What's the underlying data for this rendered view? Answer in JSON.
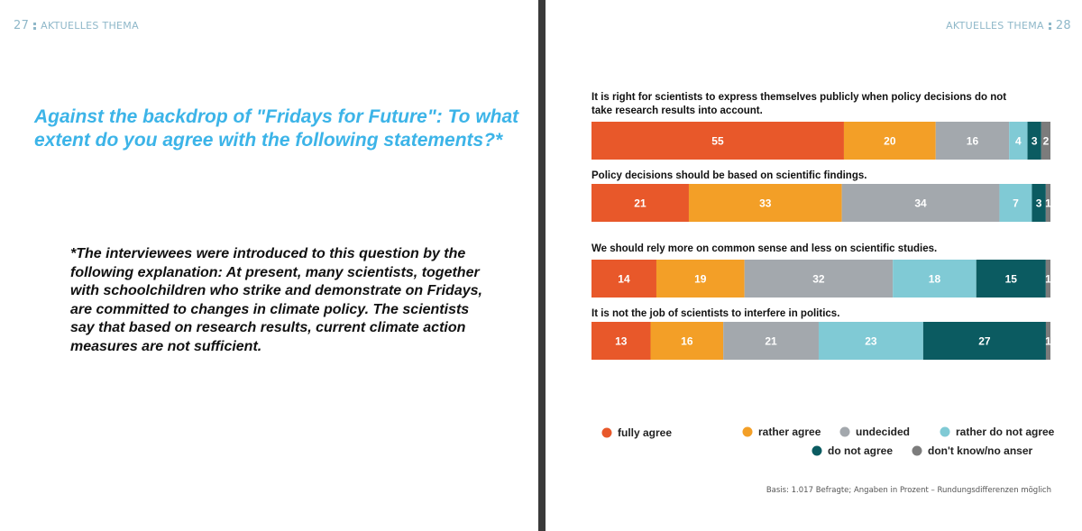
{
  "left_page": {
    "page_number": "27",
    "section": "AKTUELLES THEMA",
    "question": "Against the backdrop of \"Fridays for Future\": To what extent do you agree with the following statements?*",
    "footnote": "*The interviewees were introduced to this question by the following explanation: At present, many scientists, together with schoolchildren who strike and demonstrate on Fridays, are committed to changes in climate policy. The scientists say that based on research results, current climate action measures are not sufficient."
  },
  "right_page": {
    "page_number": "28",
    "section": "AKTUELLES THEMA",
    "basis": "Basis: 1.017 Befragte; Angaben in Prozent – Rundungsdifferenzen möglich"
  },
  "chart_data": {
    "type": "bar",
    "orientation": "horizontal-stacked",
    "xlim": [
      0,
      100
    ],
    "legend_position": "bottom",
    "grid": false,
    "categories": [
      "It is right for scientists to express themselves publicly when policy decisions do not take research results into account.",
      "Policy decisions should be based on scientific findings.",
      "We should rely more on common sense and less on scientific studies.",
      "It is not the job of scientists to interfere in politics."
    ],
    "series": [
      {
        "name": "fully agree",
        "color": "#e8582a",
        "values": [
          55,
          21,
          14,
          13
        ]
      },
      {
        "name": "rather agree",
        "color": "#f39f27",
        "values": [
          20,
          33,
          19,
          16
        ]
      },
      {
        "name": "undecided",
        "color": "#a3a8ad",
        "values": [
          16,
          34,
          32,
          21
        ]
      },
      {
        "name": "rather do not agree",
        "color": "#80cad5",
        "values": [
          4,
          7,
          18,
          23
        ]
      },
      {
        "name": "do not agree",
        "color": "#0b5b61",
        "values": [
          3,
          3,
          15,
          27
        ]
      },
      {
        "name": "don't know/no anser",
        "color": "#7c7c7c",
        "values": [
          2,
          1,
          1,
          1
        ]
      }
    ]
  }
}
